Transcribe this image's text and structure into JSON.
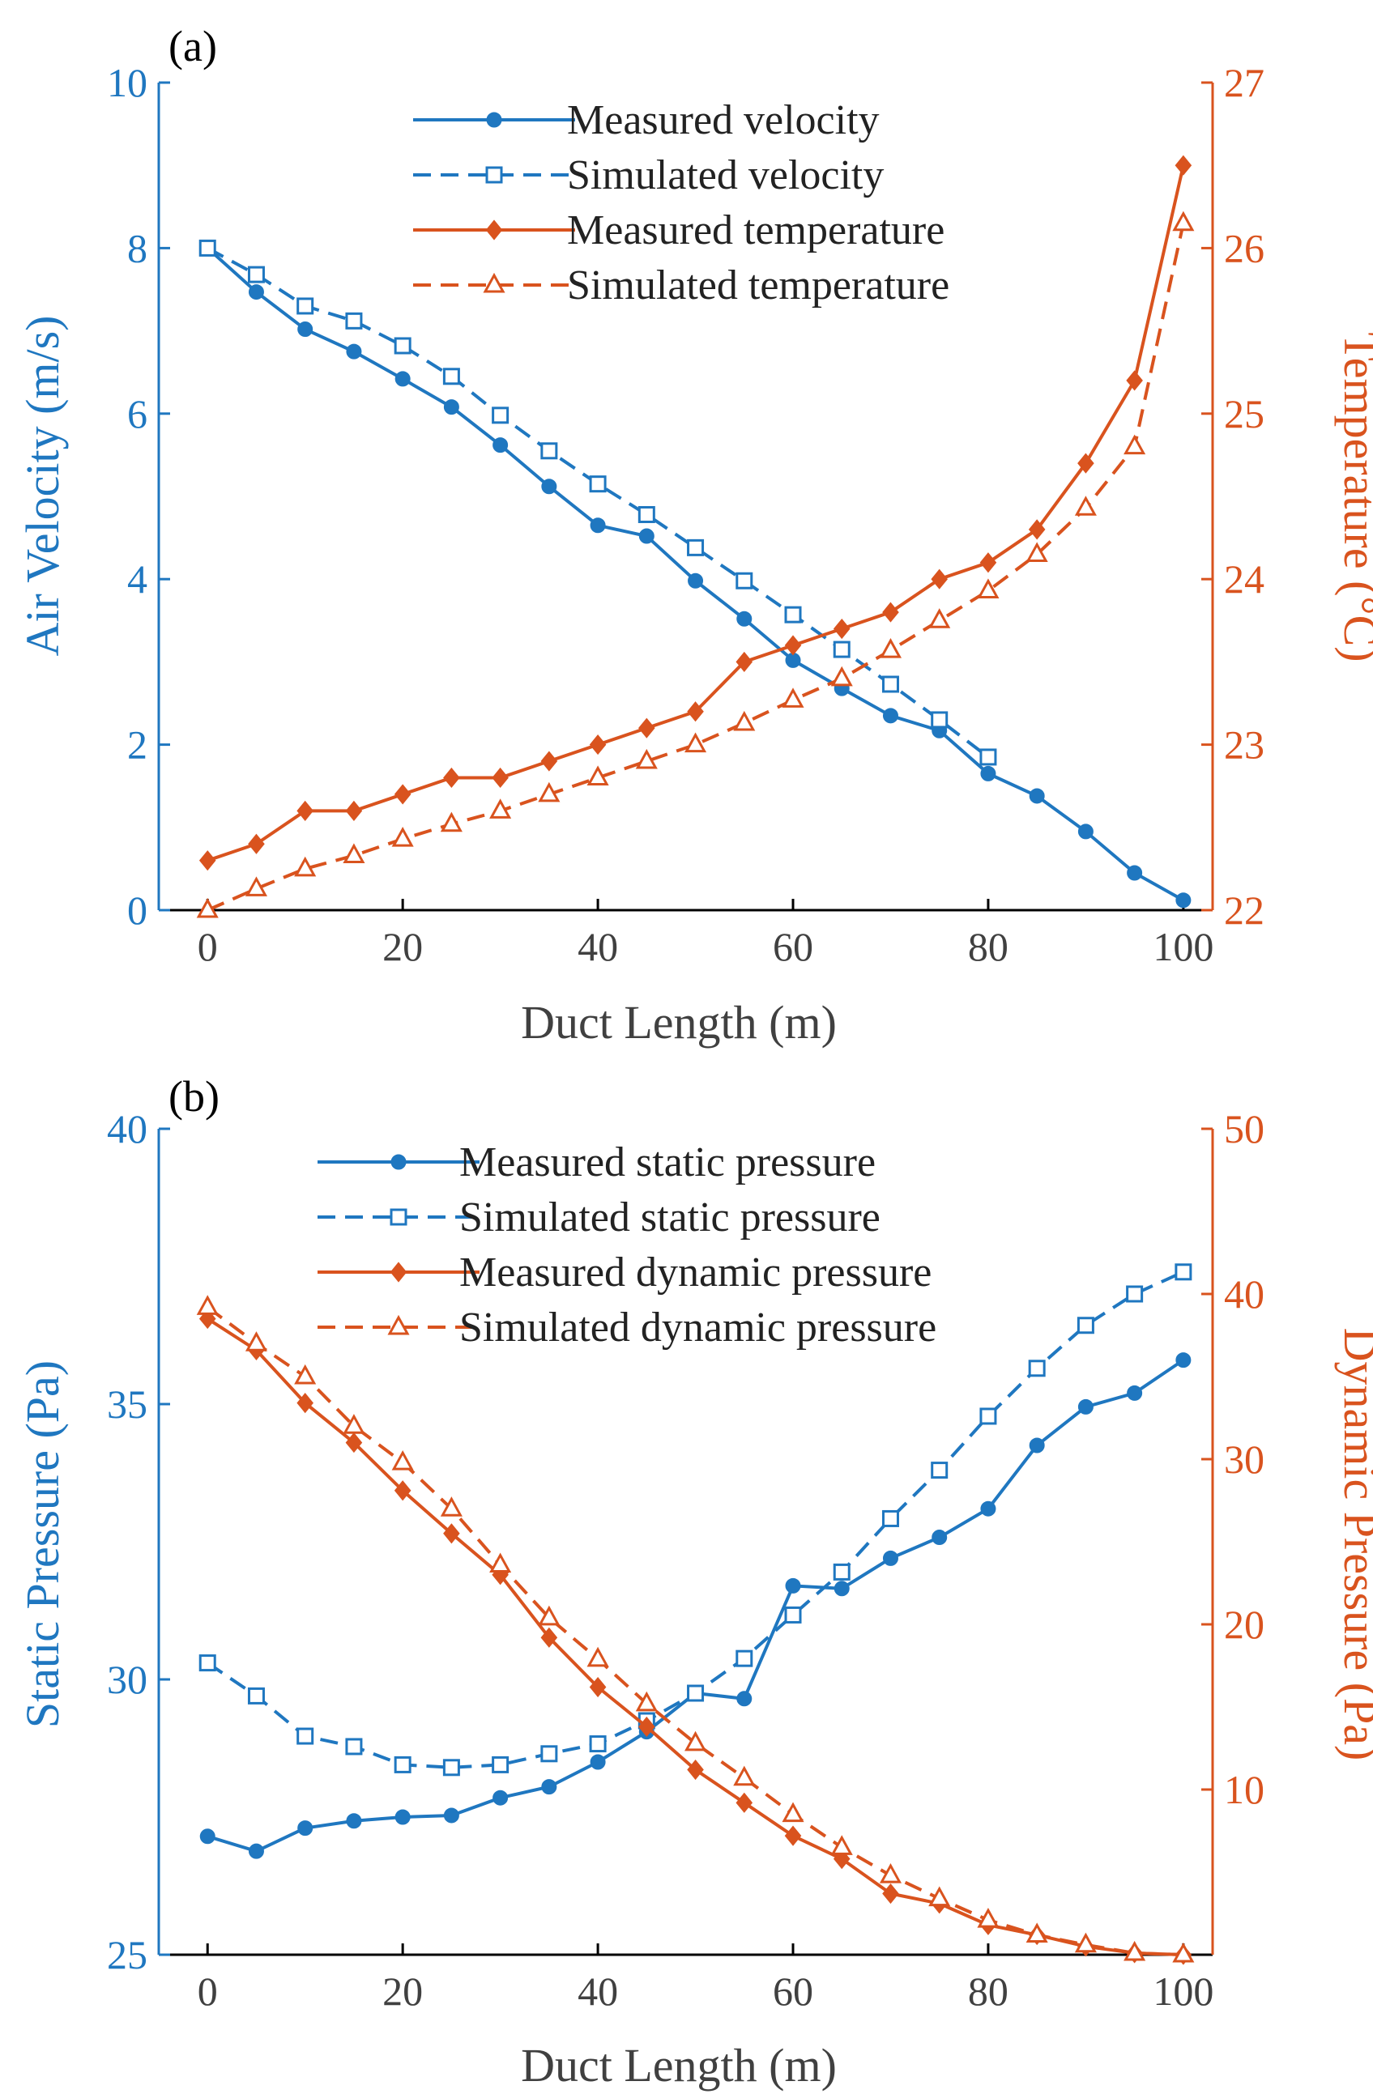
{
  "colors": {
    "blue": "#1f77c0",
    "orange": "#d9531e",
    "black": "#000000"
  },
  "panels": [
    {
      "id": "a",
      "label": "(a)",
      "legend_placement": "top-center",
      "xlabel": "Duct Length (m)"
    },
    {
      "id": "b",
      "label": "(b)",
      "legend_placement": "top-center",
      "xlabel": "Duct Length (m)"
    }
  ],
  "chart_data": [
    {
      "type": "line",
      "panel": "(a)",
      "xlabel": "Duct Length (m)",
      "ylabel_left": "Air Velocity (m/s)",
      "ylabel_right": "Temperature (°C)",
      "xlim": [
        -5,
        103
      ],
      "ylim_left": [
        0,
        10
      ],
      "ylim_right": [
        22,
        27
      ],
      "xticks": [
        "0",
        "20",
        "40",
        "60",
        "80",
        "100"
      ],
      "yticks_left": [
        "0",
        "2",
        "4",
        "6",
        "8",
        "10"
      ],
      "yticks_right": [
        "22",
        "23",
        "24",
        "25",
        "26",
        "27"
      ],
      "x": [
        0,
        5,
        10,
        15,
        20,
        25,
        30,
        35,
        40,
        45,
        50,
        55,
        60,
        65,
        70,
        75,
        80,
        85,
        90,
        95,
        100
      ],
      "series": [
        {
          "name": "Measured velocity",
          "axis": "left",
          "color": "#1f77c0",
          "style": "solid",
          "marker": "circle",
          "values": [
            8.0,
            7.47,
            7.02,
            6.75,
            6.42,
            6.08,
            5.62,
            5.12,
            4.65,
            4.52,
            3.98,
            3.52,
            3.02,
            2.68,
            2.35,
            2.17,
            1.65,
            1.38,
            0.95,
            0.45,
            0.12
          ]
        },
        {
          "name": "Simulated velocity",
          "axis": "left",
          "color": "#1f77c0",
          "style": "dashed",
          "marker": "square",
          "values": [
            8.0,
            7.68,
            7.3,
            7.12,
            6.82,
            6.45,
            5.98,
            5.55,
            5.15,
            4.78,
            4.38,
            3.98,
            3.57,
            3.15,
            2.73,
            2.3,
            1.85,
            null,
            null,
            null,
            null
          ]
        },
        {
          "name": "Measured temperature",
          "axis": "right",
          "color": "#d9531e",
          "style": "solid",
          "marker": "diamond",
          "values": [
            22.3,
            22.4,
            22.6,
            22.6,
            22.7,
            22.8,
            22.8,
            22.9,
            23.0,
            23.1,
            23.2,
            23.5,
            23.6,
            23.7,
            23.8,
            24.0,
            24.1,
            24.3,
            24.7,
            25.2,
            26.5
          ]
        },
        {
          "name": "Simulated temperature",
          "axis": "right",
          "color": "#d9531e",
          "style": "dashed",
          "marker": "triangle",
          "values": [
            22.0,
            22.13,
            22.25,
            22.33,
            22.43,
            22.52,
            22.6,
            22.7,
            22.8,
            22.9,
            23.0,
            23.13,
            23.27,
            23.4,
            23.57,
            23.75,
            23.93,
            24.15,
            24.43,
            24.8,
            26.15
          ]
        }
      ]
    },
    {
      "type": "line",
      "panel": "(b)",
      "xlabel": "Duct Length (m)",
      "ylabel_left": "Static Pressure (Pa)",
      "ylabel_right": "Dynamic Pressure (Pa)",
      "xlim": [
        -5,
        103
      ],
      "ylim_left": [
        25,
        40
      ],
      "ylim_right": [
        0,
        50
      ],
      "xticks": [
        "0",
        "20",
        "40",
        "60",
        "80",
        "100"
      ],
      "yticks_left": [
        "25",
        "30",
        "35",
        "40"
      ],
      "yticks_right": [
        "10",
        "20",
        "30",
        "40",
        "50"
      ],
      "x": [
        0,
        5,
        10,
        15,
        20,
        25,
        30,
        35,
        40,
        45,
        50,
        55,
        60,
        65,
        70,
        75,
        80,
        85,
        90,
        95,
        100
      ],
      "series": [
        {
          "name": "Measured static pressure",
          "axis": "left",
          "color": "#1f77c0",
          "style": "solid",
          "marker": "circle",
          "values": [
            27.15,
            26.88,
            27.3,
            27.43,
            27.5,
            27.53,
            27.85,
            28.05,
            28.5,
            29.05,
            29.75,
            29.65,
            31.7,
            31.65,
            32.2,
            32.58,
            33.1,
            34.25,
            34.95,
            35.2,
            35.8
          ]
        },
        {
          "name": "Simulated static pressure",
          "axis": "left",
          "color": "#1f77c0",
          "style": "dashed",
          "marker": "square",
          "values": [
            30.3,
            29.7,
            28.97,
            28.78,
            28.45,
            28.4,
            28.45,
            28.65,
            28.83,
            29.25,
            29.75,
            30.38,
            31.17,
            31.95,
            32.92,
            33.8,
            34.78,
            35.65,
            36.43,
            37.0,
            37.4
          ]
        },
        {
          "name": "Measured dynamic pressure",
          "axis": "right",
          "color": "#d9531e",
          "style": "solid",
          "marker": "diamond",
          "values": [
            38.5,
            36.6,
            33.4,
            31.0,
            28.1,
            25.5,
            23.0,
            19.2,
            16.2,
            13.8,
            11.2,
            9.2,
            7.2,
            5.8,
            3.7,
            3.1,
            1.8,
            1.2,
            0.5,
            0.1,
            0.0
          ]
        },
        {
          "name": "Simulated dynamic pressure",
          "axis": "right",
          "color": "#d9531e",
          "style": "dashed",
          "marker": "triangle",
          "values": [
            39.2,
            37.0,
            35.0,
            32.0,
            29.8,
            27.0,
            23.6,
            20.4,
            17.9,
            15.2,
            12.8,
            10.7,
            8.5,
            6.5,
            4.8,
            3.4,
            2.1,
            1.2,
            0.6,
            0.1,
            0.0
          ]
        }
      ]
    }
  ]
}
